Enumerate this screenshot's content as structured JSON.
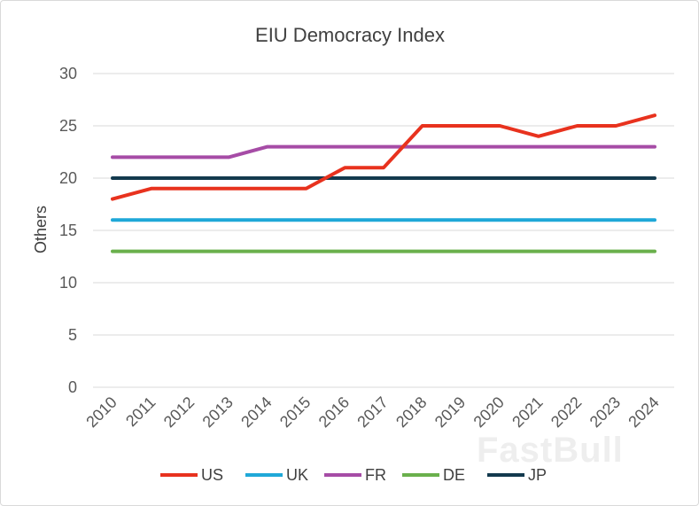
{
  "chart_data": {
    "type": "line",
    "title": "EIU Democracy Index",
    "ylabel": "Others",
    "xlabel": "",
    "ylim": [
      0,
      30
    ],
    "yticks": [
      0,
      5,
      10,
      15,
      20,
      25,
      30
    ],
    "grid": true,
    "legend_position": "bottom",
    "categories": [
      "2010",
      "2011",
      "2012",
      "2013",
      "2014",
      "2015",
      "2016",
      "2017",
      "2018",
      "2019",
      "2020",
      "2021",
      "2022",
      "2023",
      "2024"
    ],
    "series": [
      {
        "name": "US",
        "color": "#e8321e",
        "values": [
          18,
          19,
          19,
          19,
          19,
          19,
          21,
          21,
          25,
          25,
          25,
          24,
          25,
          25,
          26
        ]
      },
      {
        "name": "UK",
        "color": "#1fa8d8",
        "values": [
          16,
          16,
          16,
          16,
          16,
          16,
          16,
          16,
          16,
          16,
          16,
          16,
          16,
          16,
          16
        ]
      },
      {
        "name": "FR",
        "color": "#a64ca6",
        "values": [
          22,
          22,
          22,
          22,
          23,
          23,
          23,
          23,
          23,
          23,
          23,
          23,
          23,
          23,
          23
        ]
      },
      {
        "name": "DE",
        "color": "#6ab04c",
        "values": [
          13,
          13,
          13,
          13,
          13,
          13,
          13,
          13,
          13,
          13,
          13,
          13,
          13,
          13,
          13
        ]
      },
      {
        "name": "JP",
        "color": "#133a4e",
        "values": [
          20,
          20,
          20,
          20,
          20,
          20,
          20,
          20,
          20,
          20,
          20,
          20,
          20,
          20,
          20
        ]
      }
    ]
  },
  "watermark": "FastBull"
}
